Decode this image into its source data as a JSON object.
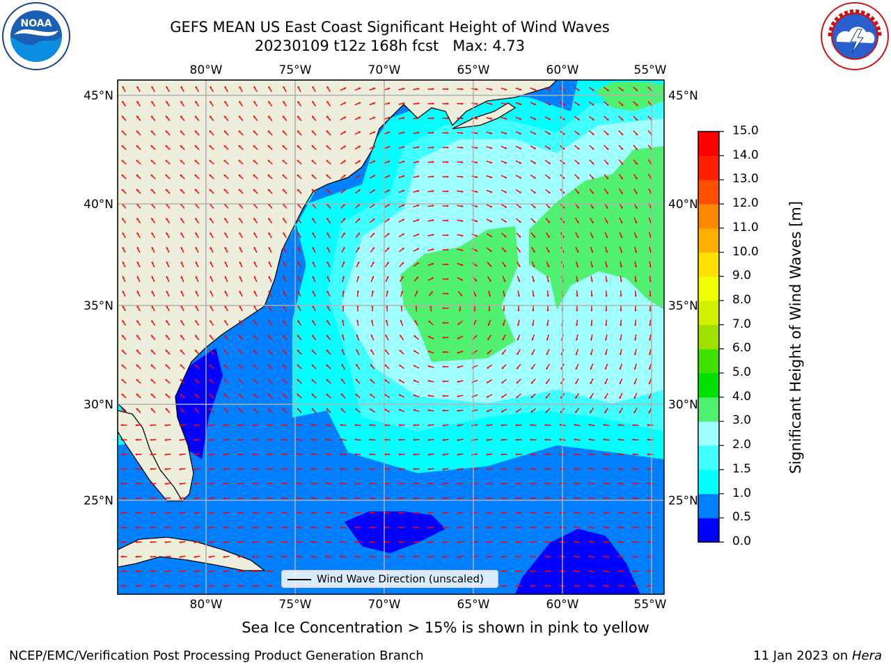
{
  "title": {
    "line1": "GEFS MEAN US East Coast Significant Height of Wind Waves",
    "line2": "20230109 t12z 168h fcst   Max: 4.73"
  },
  "axes": {
    "lon_labels": [
      "80°W",
      "75°W",
      "70°W",
      "65°W",
      "60°W",
      "55°W"
    ],
    "lat_labels": [
      "45°N",
      "40°N",
      "35°N",
      "30°N",
      "25°N"
    ]
  },
  "legend": {
    "label": "Wind Wave Direction (unscaled)"
  },
  "colorbar": {
    "label": "Significant Height of Wind Waves [m]",
    "ticks": [
      "15.0",
      "14.0",
      "13.0",
      "12.0",
      "11.0",
      "10.0",
      "9.0",
      "8.0",
      "7.0",
      "6.0",
      "5.0",
      "4.0",
      "3.0",
      "2.0",
      "1.5",
      "1.0",
      "0.5",
      "0.0"
    ],
    "colors": [
      "#0000ff",
      "#0080ff",
      "#00ffff",
      "#40ffff",
      "#a0ffff",
      "#50f070",
      "#00e000",
      "#40e000",
      "#a0e000",
      "#d0f000",
      "#f0ff00",
      "#ffe000",
      "#ffb000",
      "#ff8800",
      "#ff5000",
      "#ff2000",
      "#ff0000"
    ]
  },
  "map_colors": {
    "land": "#eeeedc",
    "arrows": "#ff0000",
    "grid": "#b0b0b0",
    "coast": "#000000"
  },
  "footer": {
    "ice_note": "Sea Ice Concentration > 15% is shown in pink to yellow",
    "left": "NCEP/EMC/Verification Post Processing Product Generation Branch",
    "right_date": "11 Jan 2023 on",
    "right_machine": "Hera"
  },
  "logos": {
    "noaa": "NOAA",
    "nws": "NATIONAL WEATHER SERVICE"
  }
}
